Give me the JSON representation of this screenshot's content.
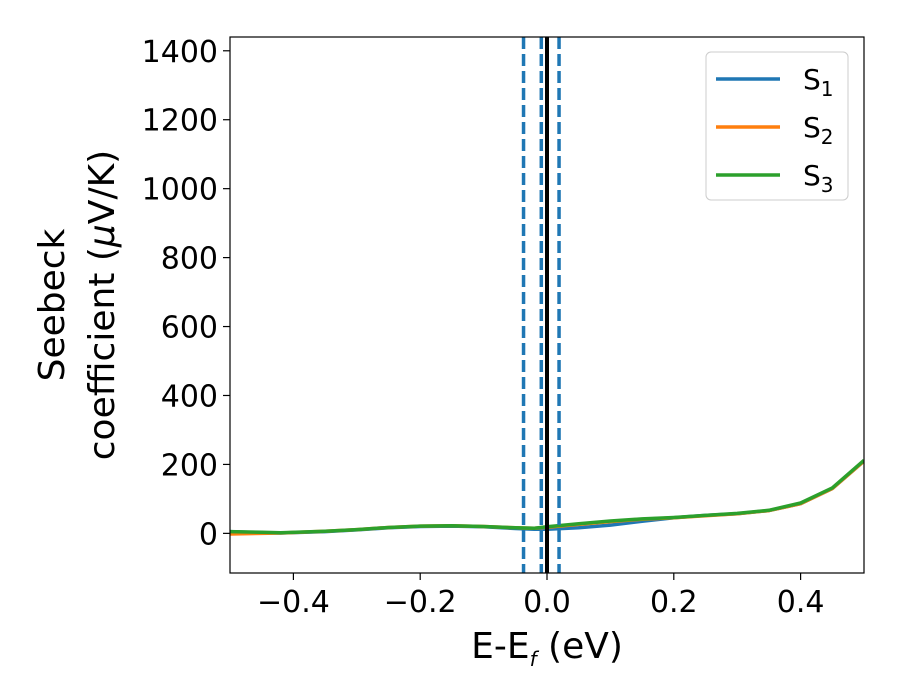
{
  "chart_data": {
    "type": "line",
    "title": "",
    "xlabel": {
      "main": "E-E",
      "sub": "f",
      "unit": " (eV)"
    },
    "ylabel": {
      "line1": "Seebeck",
      "line2_text": "coefficient  (",
      "mu": "μ",
      "line2_unit": "V/K)"
    },
    "xlim": [
      -0.5,
      0.5
    ],
    "ylim": [
      -115,
      1440
    ],
    "x_ticks": [
      -0.4,
      -0.2,
      0.0,
      0.2,
      0.4
    ],
    "x_tick_labels": [
      "−0.4",
      "−0.2",
      "0.0",
      "0.2",
      "0.4"
    ],
    "y_ticks": [
      0,
      200,
      400,
      600,
      800,
      1000,
      1200,
      1400
    ],
    "y_tick_labels": [
      "0",
      "200",
      "400",
      "600",
      "800",
      "1000",
      "1200",
      "1400"
    ],
    "grid": false,
    "legend_placement": "top-right",
    "series": [
      {
        "name": "S",
        "sub": "1",
        "color": "#1f77b4",
        "x": [
          -0.5,
          -0.45,
          -0.42,
          -0.35,
          -0.3,
          -0.25,
          -0.2,
          -0.15,
          -0.1,
          -0.05,
          -0.02,
          0.0,
          0.05,
          0.1,
          0.15,
          0.2,
          0.25,
          0.3,
          0.35,
          0.4,
          0.45,
          0.5
        ],
        "y": [
          5,
          2,
          1,
          5,
          10,
          16,
          20,
          21,
          19,
          14,
          12,
          12,
          16,
          24,
          35,
          45,
          52,
          57,
          66,
          86,
          130,
          210
        ]
      },
      {
        "name": "S",
        "sub": "2",
        "color": "#ff7f0e",
        "x": [
          -0.5,
          -0.45,
          -0.42,
          -0.35,
          -0.3,
          -0.25,
          -0.2,
          -0.15,
          -0.1,
          -0.05,
          -0.02,
          0.0,
          0.05,
          0.1,
          0.15,
          0.2,
          0.25,
          0.3,
          0.35,
          0.4,
          0.45,
          0.5
        ],
        "y": [
          -2,
          0,
          1,
          6,
          11,
          17,
          21,
          22,
          20,
          16,
          15,
          18,
          26,
          34,
          41,
          45,
          51,
          57,
          66,
          86,
          130,
          210
        ]
      },
      {
        "name": "S",
        "sub": "3",
        "color": "#2ca02c",
        "x": [
          -0.5,
          -0.45,
          -0.42,
          -0.35,
          -0.3,
          -0.25,
          -0.2,
          -0.15,
          -0.1,
          -0.05,
          -0.02,
          0.0,
          0.05,
          0.1,
          0.15,
          0.2,
          0.25,
          0.3,
          0.35,
          0.4,
          0.45,
          0.5
        ],
        "y": [
          5,
          3,
          2,
          6,
          11,
          17,
          21,
          22,
          20,
          16,
          15,
          19,
          28,
          36,
          42,
          46,
          52,
          58,
          67,
          88,
          132,
          212
        ]
      }
    ],
    "vertical_lines": [
      {
        "x": 0.0,
        "style": "solid",
        "color": "#000000"
      },
      {
        "x": -0.037,
        "style": "dashed",
        "color": "#1f77b4"
      },
      {
        "x": -0.009,
        "style": "dashed",
        "color": "#1f77b4"
      },
      {
        "x": 0.019,
        "style": "dashed",
        "color": "#1f77b4"
      }
    ]
  }
}
